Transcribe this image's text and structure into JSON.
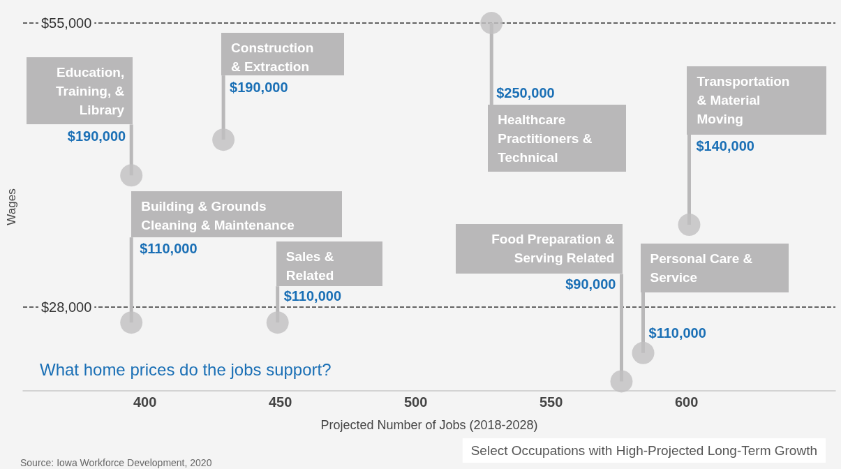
{
  "chart_data": {
    "type": "scatter",
    "title": "What home prices do the jobs support?",
    "subtitle": "Select Occupations with High-Projected Long-Term Growth",
    "xlabel": "Projected Number of Jobs (2018-2028)",
    "ylabel": "Wages",
    "x": [
      395,
      429,
      395,
      449,
      528,
      601,
      576,
      584
    ],
    "series": [
      {
        "color": "#c0bfc0",
        "values": [
          40500,
          43900,
          26500,
          26500,
          55000,
          35800,
          20900,
          23600
        ]
      }
    ],
    "xlim": [
      355,
      655
    ],
    "xticks": [
      400,
      450,
      500,
      550,
      600
    ],
    "ylim": [
      20000,
      55000
    ],
    "yticks": [
      {
        "value": 28000,
        "label": "$28,000"
      },
      {
        "value": 55000,
        "label": "$55,000"
      }
    ],
    "grid": "y",
    "marker": "circle",
    "annotations": [
      {
        "text": "Education, Training, & Library",
        "x": 395,
        "y": 40500
      },
      {
        "text": "Construction & Extraction",
        "x": 429,
        "y": 43900
      },
      {
        "text": "Building & Grounds Cleaning & Maintenance",
        "x": 395,
        "y": 26500
      },
      {
        "text": "Sales & Related",
        "x": 449,
        "y": 26500
      },
      {
        "text": "Healthcare Practitioners & Technical",
        "x": 528,
        "y": 55000
      },
      {
        "text": "Transportation & Material Moving",
        "x": 601,
        "y": 35800
      },
      {
        "text": "Food Preparation & Serving Related",
        "x": 576,
        "y": 20900
      },
      {
        "text": "Personal Care & Service",
        "x": 584,
        "y": 23600
      },
      {
        "text": "$190,000",
        "x": 395,
        "y": 40500
      },
      {
        "text": "$190,000",
        "x": 429,
        "y": 43900
      },
      {
        "text": "$110,000",
        "x": 395,
        "y": 26500
      },
      {
        "text": "$110,000",
        "x": 449,
        "y": 26500
      },
      {
        "text": "$250,000",
        "x": 528,
        "y": 55000
      },
      {
        "text": "$140,000",
        "x": 601,
        "y": 35800
      },
      {
        "text": "$90,000",
        "x": 576,
        "y": 20900
      },
      {
        "text": "$110,000",
        "x": 584,
        "y": 23600
      },
      "Source: Iowa Workforce Development, 2020"
    ]
  }
}
